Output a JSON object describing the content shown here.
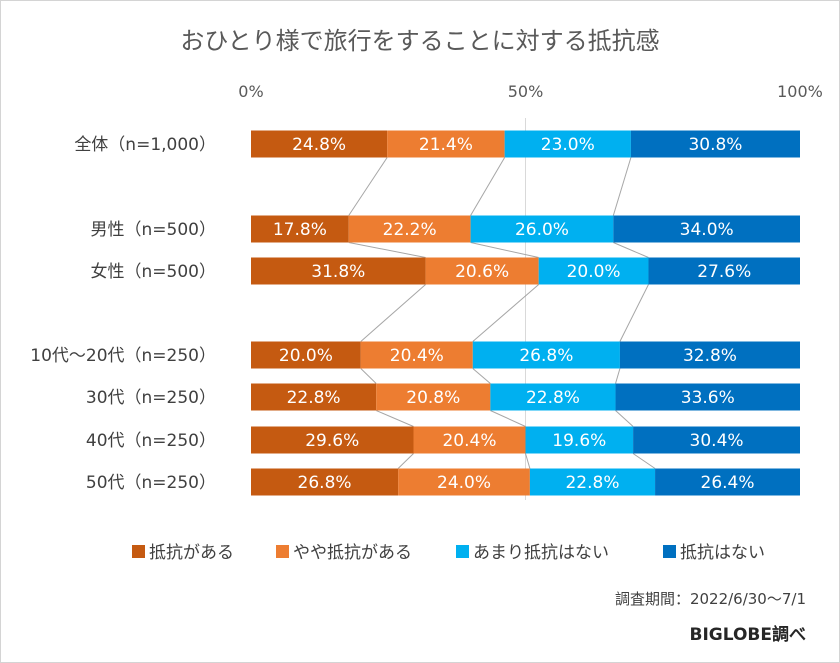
{
  "chart_data": {
    "type": "bar",
    "stacked": true,
    "orientation": "horizontal",
    "title": "おひとり様で旅行をすることに対する抵抗感",
    "xlim": [
      0,
      100
    ],
    "x_ticks": [
      "0%",
      "50%",
      "100%"
    ],
    "categories": [
      "全体（n=1,000）",
      "男性（n=500）",
      "女性（n=500）",
      "10代～20代（n=250）",
      "30代（n=250）",
      "40代（n=250）",
      "50代（n=250）"
    ],
    "series": [
      {
        "name": "抵抗がある",
        "color": "#c55a11",
        "values": [
          24.8,
          17.8,
          31.8,
          20.0,
          22.8,
          29.6,
          26.8
        ],
        "labels": [
          "24.8%",
          "17.8%",
          "31.8%",
          "20.0%",
          "22.8%",
          "29.6%",
          "26.8%"
        ]
      },
      {
        "name": "やや抵抗がある",
        "color": "#ed7d31",
        "values": [
          21.4,
          22.2,
          20.6,
          20.4,
          20.8,
          20.4,
          24.0
        ],
        "labels": [
          "21.4%",
          "22.2%",
          "20.6%",
          "20.4%",
          "20.8%",
          "20.4%",
          "24.0%"
        ]
      },
      {
        "name": "あまり抵抗はない",
        "color": "#00b0f0",
        "values": [
          23.0,
          26.0,
          20.0,
          26.8,
          22.8,
          19.6,
          22.8
        ],
        "labels": [
          "23.0%",
          "26.0%",
          "20.0%",
          "26.8%",
          "22.8%",
          "19.6%",
          "22.8%"
        ]
      },
      {
        "name": "抵抗はない",
        "color": "#0070c0",
        "values": [
          30.8,
          34.0,
          27.6,
          32.8,
          33.6,
          30.4,
          26.4
        ],
        "labels": [
          "30.8%",
          "34.0%",
          "27.6%",
          "32.8%",
          "33.6%",
          "30.4%",
          "26.4%"
        ]
      }
    ],
    "series_lines": true,
    "legend_position": "bottom"
  },
  "footer": {
    "period": "調査期間：2022/6/30～7/1",
    "source": "BIGLOBE調べ"
  }
}
